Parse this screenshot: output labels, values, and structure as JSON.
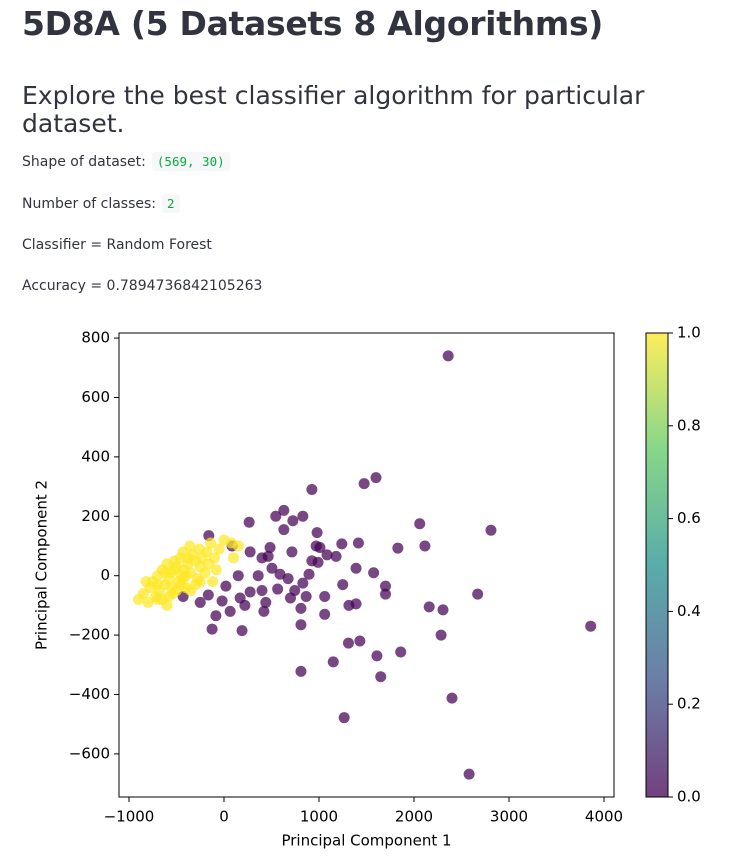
{
  "header": {
    "title": "5D8A (5 Datasets 8 Algorithms)",
    "subtitle": "Explore the best classifier algorithm for particular dataset."
  },
  "info": {
    "shape_label": "Shape of dataset:",
    "shape_value": "(569, 30)",
    "classes_label": "Number of classes:",
    "classes_value": "2",
    "classifier": "Classifier = Random Forest",
    "accuracy": "Accuracy = 0.7894736842105263"
  },
  "chart_data": {
    "type": "scatter",
    "x_label": "Principal Component 1",
    "y_label": "Principal Component 2",
    "xlim": [
      -1105,
      4105
    ],
    "ylim": [
      -745,
      817
    ],
    "xticks": [
      {
        "value": -1000,
        "label": "−1000"
      },
      0,
      1000,
      2000,
      3000,
      4000
    ],
    "yticks": [
      {
        "value": -600,
        "label": "−600"
      },
      {
        "value": -400,
        "label": "−400"
      },
      {
        "value": -200,
        "label": "−200"
      },
      0,
      200,
      400,
      600,
      800
    ],
    "colormap": [
      "#440154",
      "#3b528b",
      "#21918c",
      "#5ec962",
      "#fde725"
    ],
    "clim": [
      0,
      1
    ],
    "colorbar_ticks": [
      {
        "value": 0,
        "label": "0.0"
      },
      {
        "value": 0.2,
        "label": "0.2"
      },
      {
        "value": 0.4,
        "label": "0.4"
      },
      {
        "value": 0.6,
        "label": "0.6"
      },
      {
        "value": 0.8,
        "label": "0.8"
      },
      {
        "value": 1,
        "label": "1.0"
      }
    ],
    "x": [
      2360,
      1600,
      1475,
      925,
      2810,
      2060,
      2115,
      1830,
      3860,
      2670,
      2160,
      2305,
      2285,
      2400,
      2580,
      1265,
      1860,
      1610,
      1650,
      1150,
      810,
      1310,
      1430,
      1700,
      1700,
      1575,
      1390,
      1415,
      1240,
      1180,
      1390,
      1060,
      1060,
      865,
      810,
      810,
      830,
      895,
      990,
      980,
      970,
      1010,
      725,
      830,
      545,
      630,
      630,
      485,
      400,
      465,
      360,
      505,
      590,
      675,
      400,
      220,
      65,
      -85,
      -125,
      190,
      275,
      265,
      85,
      -165,
      -250,
      -430,
      -160,
      20,
      150,
      275,
      440,
      565,
      700,
      745,
      420,
      -20,
      170,
      925,
      1085,
      1250,
      1315,
      715,
      -900,
      -850,
      -800,
      -780,
      -750,
      -720,
      -700,
      -680,
      -650,
      -620,
      -600,
      -580,
      -560,
      -540,
      -520,
      -500,
      -480,
      -460,
      -450,
      -430,
      -420,
      -400,
      -380,
      -360,
      -350,
      -330,
      -300,
      -280,
      -260,
      -250,
      -230,
      -200,
      -180,
      -160,
      -140,
      -120,
      -100,
      -80,
      -50,
      0,
      80,
      100,
      150,
      -700,
      -650,
      -600,
      -550,
      -500,
      -450,
      -400,
      -350,
      -300,
      -700,
      -820,
      -620,
      -580,
      -520,
      -430,
      -380,
      -250
    ],
    "y": [
      740,
      330,
      310,
      290,
      153,
      175,
      100,
      93,
      -170,
      -62,
      -105,
      -115,
      -200,
      -412,
      -668,
      -478,
      -257,
      -270,
      -340,
      -290,
      -322,
      -227,
      -220,
      -35,
      -62,
      10,
      25,
      110,
      107,
      65,
      -95,
      -130,
      -70,
      -70,
      -110,
      -165,
      -25,
      5,
      45,
      145,
      100,
      95,
      185,
      200,
      200,
      220,
      155,
      95,
      60,
      65,
      0,
      25,
      5,
      -10,
      -50,
      -100,
      -120,
      -135,
      -180,
      -185,
      80,
      180,
      100,
      -65,
      -90,
      -70,
      135,
      -35,
      0,
      -55,
      -90,
      -45,
      -75,
      -50,
      -120,
      -85,
      -75,
      50,
      70,
      -30,
      -100,
      80,
      -80,
      -60,
      -90,
      -40,
      -20,
      -70,
      0,
      -50,
      20,
      -30,
      40,
      -10,
      10,
      -60,
      50,
      30,
      -20,
      60,
      0,
      80,
      20,
      -40,
      40,
      100,
      10,
      70,
      50,
      -10,
      90,
      30,
      60,
      10,
      80,
      40,
      110,
      -20,
      60,
      20,
      90,
      120,
      110,
      60,
      100,
      -30,
      -80,
      -100,
      -40,
      -50,
      -30,
      0,
      -50,
      -30,
      -80,
      -20,
      10,
      -70,
      20,
      -10,
      60,
      -20
    ],
    "c": [
      0,
      0,
      0,
      0,
      0,
      0,
      0,
      0,
      0,
      0,
      0,
      0,
      0,
      0,
      0,
      0,
      0,
      0,
      0,
      0,
      0,
      0,
      0,
      0,
      0,
      0,
      0,
      0,
      0,
      0,
      0,
      0,
      0,
      0,
      0,
      0,
      0,
      0,
      0,
      0,
      0,
      0,
      0,
      0,
      0,
      0,
      0,
      0,
      0,
      0,
      0,
      0,
      0,
      0,
      0,
      0,
      0,
      0,
      0,
      0,
      0,
      0,
      0,
      0,
      0,
      0,
      0,
      0,
      0,
      0,
      0,
      0,
      0,
      0,
      0,
      0,
      0,
      0,
      0,
      0,
      0,
      0,
      1,
      1,
      1,
      1,
      1,
      1,
      1,
      1,
      1,
      1,
      1,
      1,
      1,
      1,
      1,
      1,
      1,
      1,
      1,
      1,
      1,
      1,
      1,
      1,
      1,
      1,
      1,
      1,
      1,
      1,
      1,
      1,
      1,
      1,
      1,
      1,
      1,
      1,
      1,
      1,
      1,
      1,
      1,
      1,
      1,
      1,
      1,
      1,
      1,
      1,
      1,
      1,
      1,
      1,
      1,
      1,
      1,
      1,
      1,
      1
    ]
  }
}
